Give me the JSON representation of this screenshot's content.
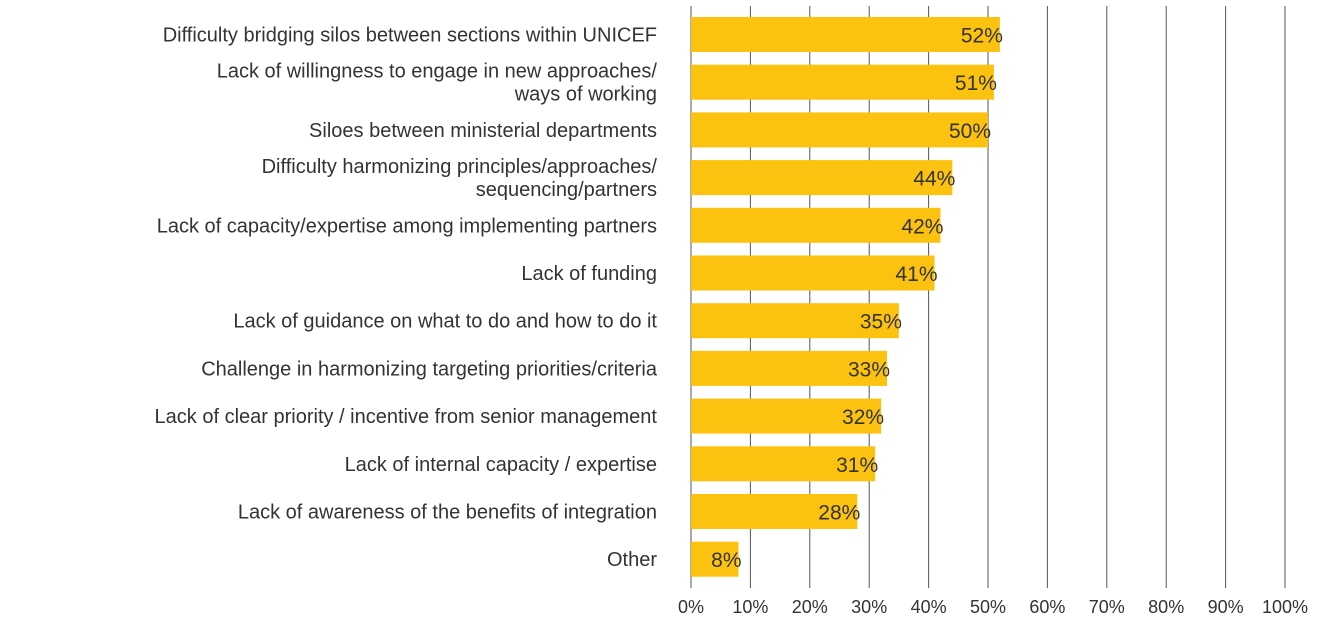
{
  "chart_data": {
    "type": "bar",
    "orientation": "horizontal",
    "categories": [
      [
        "Difficulty bridging silos between sections within UNICEF"
      ],
      [
        "Lack of willingness to engage in new approaches/",
        "ways of working"
      ],
      [
        "Siloes between ministerial departments"
      ],
      [
        "Difficulty harmonizing principles/approaches/",
        "sequencing/partners"
      ],
      [
        "Lack of capacity/expertise among implementing partners"
      ],
      [
        "Lack of funding"
      ],
      [
        "Lack of guidance on what to do and how to do it"
      ],
      [
        "Challenge in harmonizing targeting priorities/criteria"
      ],
      [
        "Lack of clear priority / incentive from senior management"
      ],
      [
        "Lack of internal capacity / expertise"
      ],
      [
        "Lack of awareness of the benefits of integration"
      ],
      [
        "Other"
      ]
    ],
    "values": [
      52,
      51,
      50,
      44,
      42,
      41,
      35,
      33,
      32,
      31,
      28,
      8
    ],
    "data_labels": [
      "52%",
      "51%",
      "50%",
      "44%",
      "42%",
      "41%",
      "35%",
      "33%",
      "32%",
      "31%",
      "28%",
      "8%"
    ],
    "x_ticks": [
      "0%",
      "10%",
      "20%",
      "30%",
      "40%",
      "50%",
      "60%",
      "70%",
      "80%",
      "90%",
      "100%"
    ],
    "xlim": [
      0,
      100
    ],
    "grid": true,
    "bar_color": "#FBC210",
    "grid_color": "#555555",
    "text_color": "#333333"
  }
}
